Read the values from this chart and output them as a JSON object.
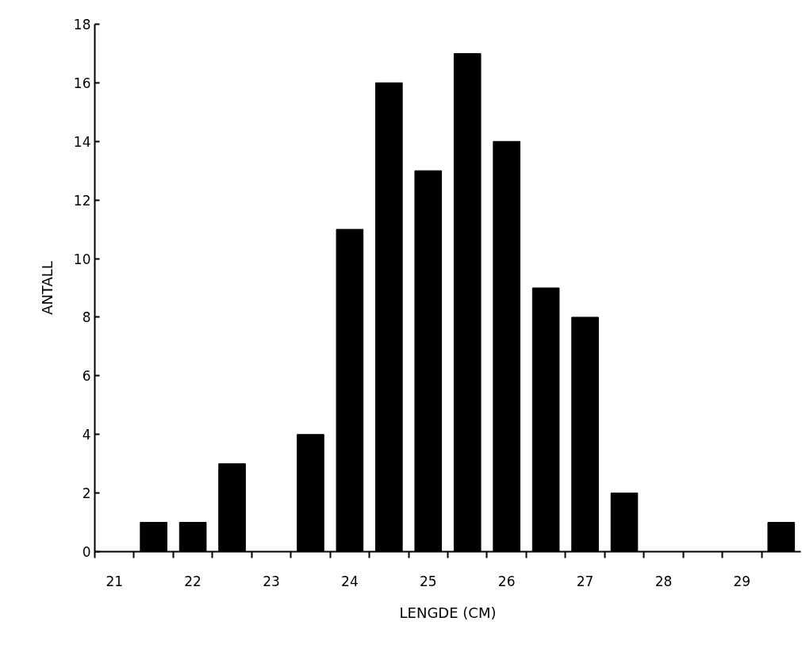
{
  "chart_data": {
    "type": "bar",
    "xlabel": "LENGDE (CM)",
    "ylabel": "ANTALL",
    "categories": [
      "21",
      null,
      "22",
      null,
      "23",
      null,
      "24",
      null,
      "25",
      null,
      "26",
      null,
      "27",
      null,
      "28",
      null,
      "29",
      null
    ],
    "values": [
      0,
      1,
      1,
      3,
      0,
      4,
      11,
      16,
      13,
      17,
      14,
      9,
      8,
      2,
      0,
      0,
      0,
      1
    ],
    "color": "#000000",
    "ylim": [
      0,
      18
    ],
    "yticks": [
      0,
      2,
      4,
      6,
      8,
      10,
      12,
      14,
      16,
      18
    ],
    "grid": false
  }
}
